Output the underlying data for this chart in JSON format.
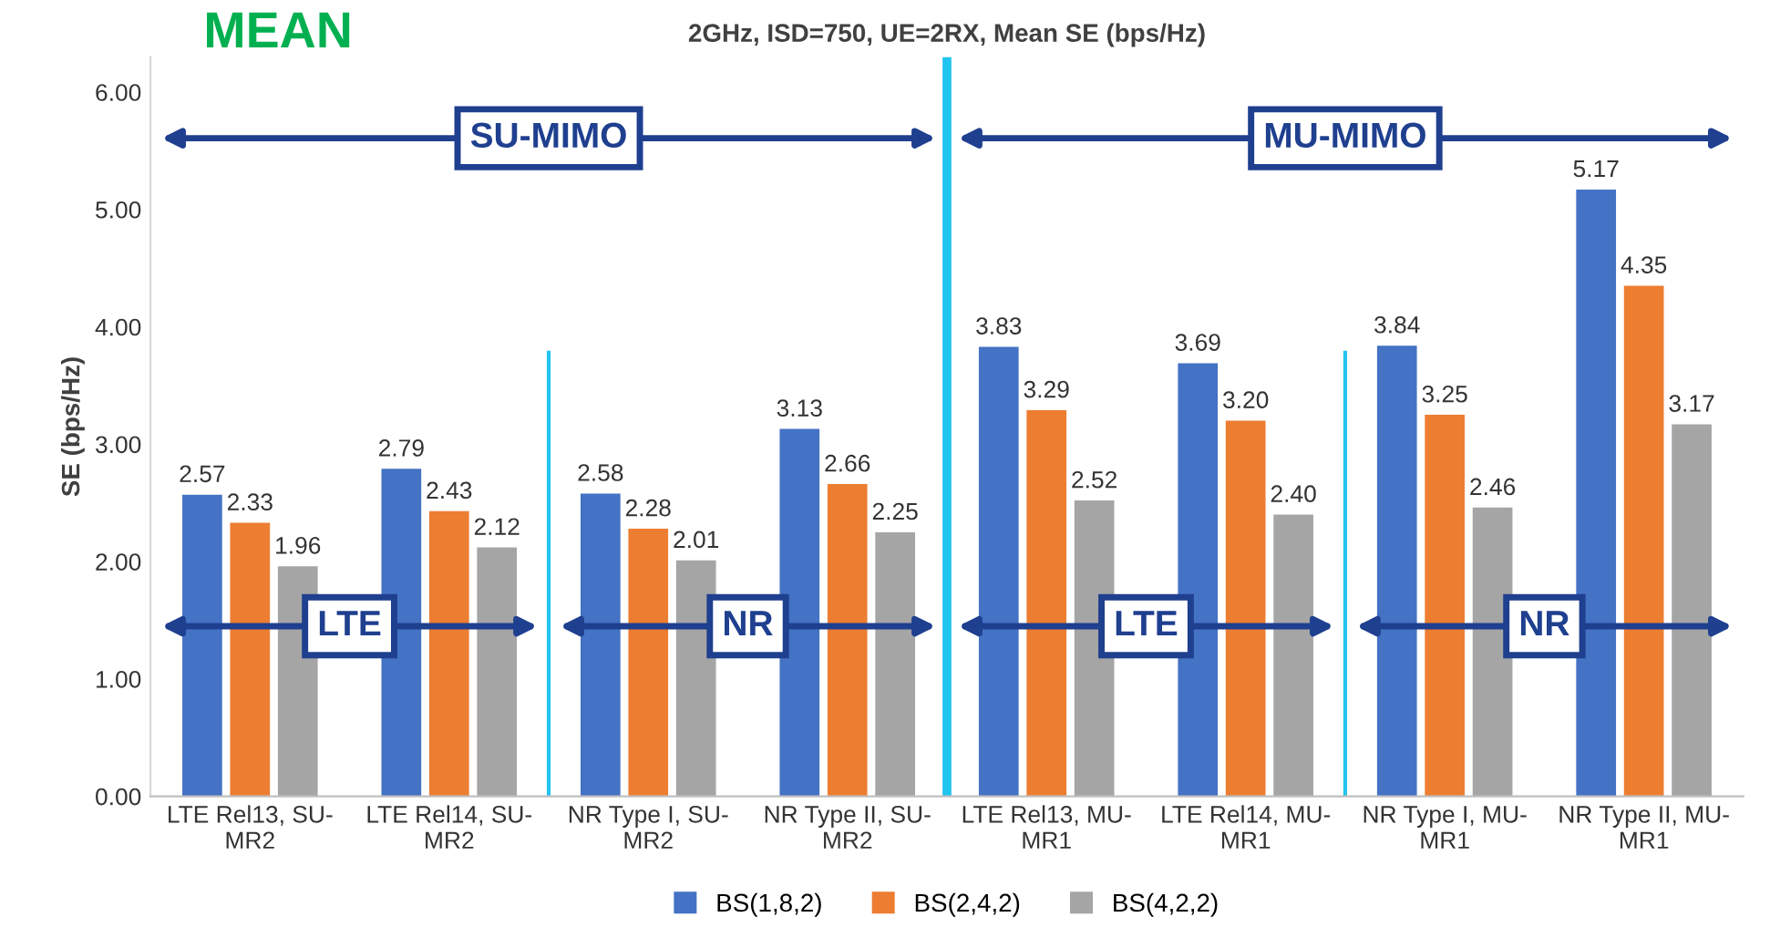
{
  "chart_data": {
    "type": "bar",
    "title": "2GHz, ISD=750, UE=2RX, Mean SE (bps/Hz)",
    "ylabel": "SE (bps/Hz)",
    "categories": [
      "LTE Rel13, SU-MR2",
      "LTE Rel14, SU-MR2",
      "NR Type I, SU-MR2",
      "NR Type II, SU-MR2",
      "LTE Rel13, MU-MR1",
      "LTE Rel14, MU-MR1",
      "NR Type I, MU-MR1",
      "NR Type II, MU-MR1"
    ],
    "series": [
      {
        "name": "BS(1,8,2)",
        "color": "#4472c4",
        "values": [
          2.57,
          2.79,
          2.58,
          3.13,
          3.83,
          3.69,
          3.84,
          5.17
        ],
        "value_labels": [
          "2.57",
          "2.79",
          "2.58",
          "3.13",
          "3.83",
          "3.69",
          "3.84",
          "5.17"
        ]
      },
      {
        "name": "BS(2,4,2)",
        "color": "#ed7d31",
        "values": [
          2.33,
          2.43,
          2.28,
          2.66,
          3.29,
          3.2,
          3.25,
          4.35
        ],
        "value_labels": [
          "2.33",
          "2.43",
          "2.28",
          "2.66",
          "3.29",
          "3.20",
          "3.25",
          "4.35"
        ]
      },
      {
        "name": "BS(4,2,2)",
        "color": "#a5a5a5",
        "values": [
          1.96,
          2.12,
          2.01,
          2.25,
          2.52,
          2.4,
          2.46,
          3.17
        ],
        "value_labels": [
          "1.96",
          "2.12",
          "2.01",
          "2.25",
          "2.52",
          "2.40",
          "2.46",
          "3.17"
        ]
      }
    ],
    "ylim": [
      0,
      6.3
    ],
    "yticks": [
      {
        "value": 0,
        "label": "0.00"
      },
      {
        "value": 1,
        "label": "1.00"
      },
      {
        "value": 2,
        "label": "2.00"
      },
      {
        "value": 3,
        "label": "3.00"
      },
      {
        "value": 4,
        "label": "4.00"
      },
      {
        "value": 5,
        "label": "5.00"
      },
      {
        "value": 6,
        "label": "6.00"
      }
    ],
    "annotations": [
      "MEAN",
      "SU-MIMO",
      "MU-MIMO",
      "LTE",
      "NR",
      "LTE",
      "NR"
    ],
    "grid": false,
    "legend": "bottom"
  }
}
